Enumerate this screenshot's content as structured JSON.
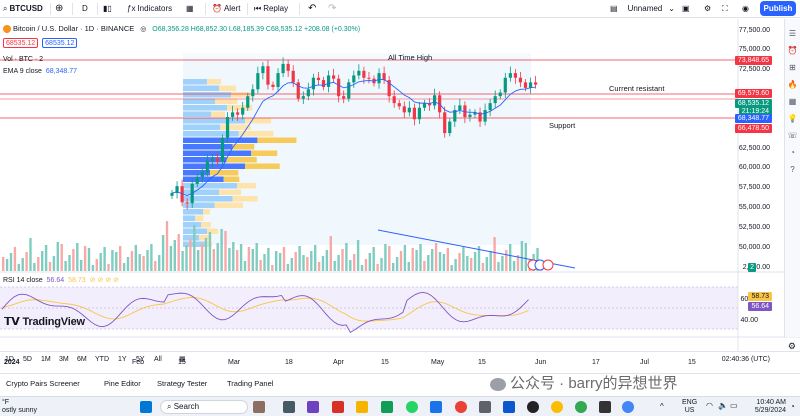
{
  "toolbar": {
    "symbol": "BTCUSD",
    "interval": "D",
    "indicators": "Indicators",
    "alert": "Alert",
    "replay": "Replay",
    "layout_name": "Unnamed",
    "publish": "Publish"
  },
  "legend": {
    "title": "Bitcoin / U.S. Dollar · 1D · BINANCE",
    "ohlc": "O68,356.28 H68,852.30 L68,185.39 C68,535.12 +208.08 (+0.30%)",
    "bid": "68535.12",
    "ask": "68535.12",
    "vol": "Vol · BTC · 2",
    "ema_label": "EMA 9 close",
    "ema_value": "68,348.77",
    "rsi_label": "RSI 14 close",
    "rsi_value": "56.64",
    "rsi_ma": "58.73"
  },
  "annotations": {
    "ath": "All Time High",
    "resistance": "Current resistant",
    "support": "Support"
  },
  "price_axis": [
    "77,500.00",
    "75,000.00",
    "72,500.00",
    "67,500.00",
    "62,500.00",
    "60,000.00",
    "57,500.00",
    "55,000.00",
    "52,500.00",
    "50,000.00",
    "2,500.00"
  ],
  "price_tags": {
    "high": "73,848.65",
    "resist": "69,579.60",
    "last": "68,535.12",
    "countdown": "21:19:24",
    "ema": "68,348.77",
    "support": "66,478.50"
  },
  "rsi_axis": [
    "60.00",
    "40.00"
  ],
  "rsi_tags": {
    "ma": "58.73",
    "rsi": "56.64"
  },
  "x_axis": [
    "2024",
    "Feb",
    "15",
    "Mar",
    "18",
    "Apr",
    "15",
    "May",
    "15",
    "Jun",
    "17",
    "Jul",
    "15"
  ],
  "range": {
    "buttons": [
      "1D",
      "5D",
      "1M",
      "3M",
      "6M",
      "YTD",
      "1Y",
      "5Y",
      "All"
    ],
    "clock": "02:40:36 (UTC)"
  },
  "panels": [
    "Crypto Pairs Screener",
    "Pine Editor",
    "Strategy Tester",
    "Trading Panel"
  ],
  "watermark": "公众号 · barry的异想世界",
  "taskbar": {
    "weather": "°F",
    "weather_sub": "ostly sunny",
    "search": "Search",
    "lang": "ENG",
    "region": "US",
    "time": "10:40 AM",
    "date": "5/29/2024"
  },
  "colors": {
    "up": "#089981",
    "down": "#f23645",
    "blue": "#2962ff",
    "ema": "#2962ff",
    "rsi": "#7e57c2",
    "rsi_ma": "#f7c548"
  },
  "chart_data": {
    "type": "candlestick",
    "x_labels": [
      "2024",
      "Feb",
      "15",
      "Mar",
      "18",
      "Apr",
      "15",
      "May",
      "15",
      "Jun",
      "17",
      "Jul",
      "15"
    ],
    "levels": {
      "all_time_high": 73848.65,
      "resistance": 69579.6,
      "support": 66478.5
    },
    "last": 68535.12,
    "ema9": 68348.77,
    "rsi14": 56.64,
    "rsi_ma": 58.73,
    "closes": [
      45000,
      46500,
      43000,
      42800,
      47000,
      48500,
      49500,
      52000,
      52500,
      51800,
      57000,
      61500,
      62500,
      62000,
      63500,
      66000,
      67500,
      71000,
      72500,
      68500,
      68000,
      71000,
      73000,
      71500,
      69000,
      65500,
      66000,
      67500,
      70000,
      69500,
      68000,
      70500,
      69800,
      66000,
      65500,
      69000,
      70500,
      71500,
      70000,
      69800,
      68800,
      71000,
      69500,
      66000,
      64500,
      63800,
      62500,
      63500,
      61000,
      63500,
      64500,
      64000,
      66200,
      62500,
      58000,
      60500,
      63000,
      64000,
      61500,
      62000,
      62500,
      60500,
      63000,
      64500,
      66000,
      66800,
      70000,
      71000,
      70000,
      69000,
      67800,
      69000,
      68500
    ]
  }
}
